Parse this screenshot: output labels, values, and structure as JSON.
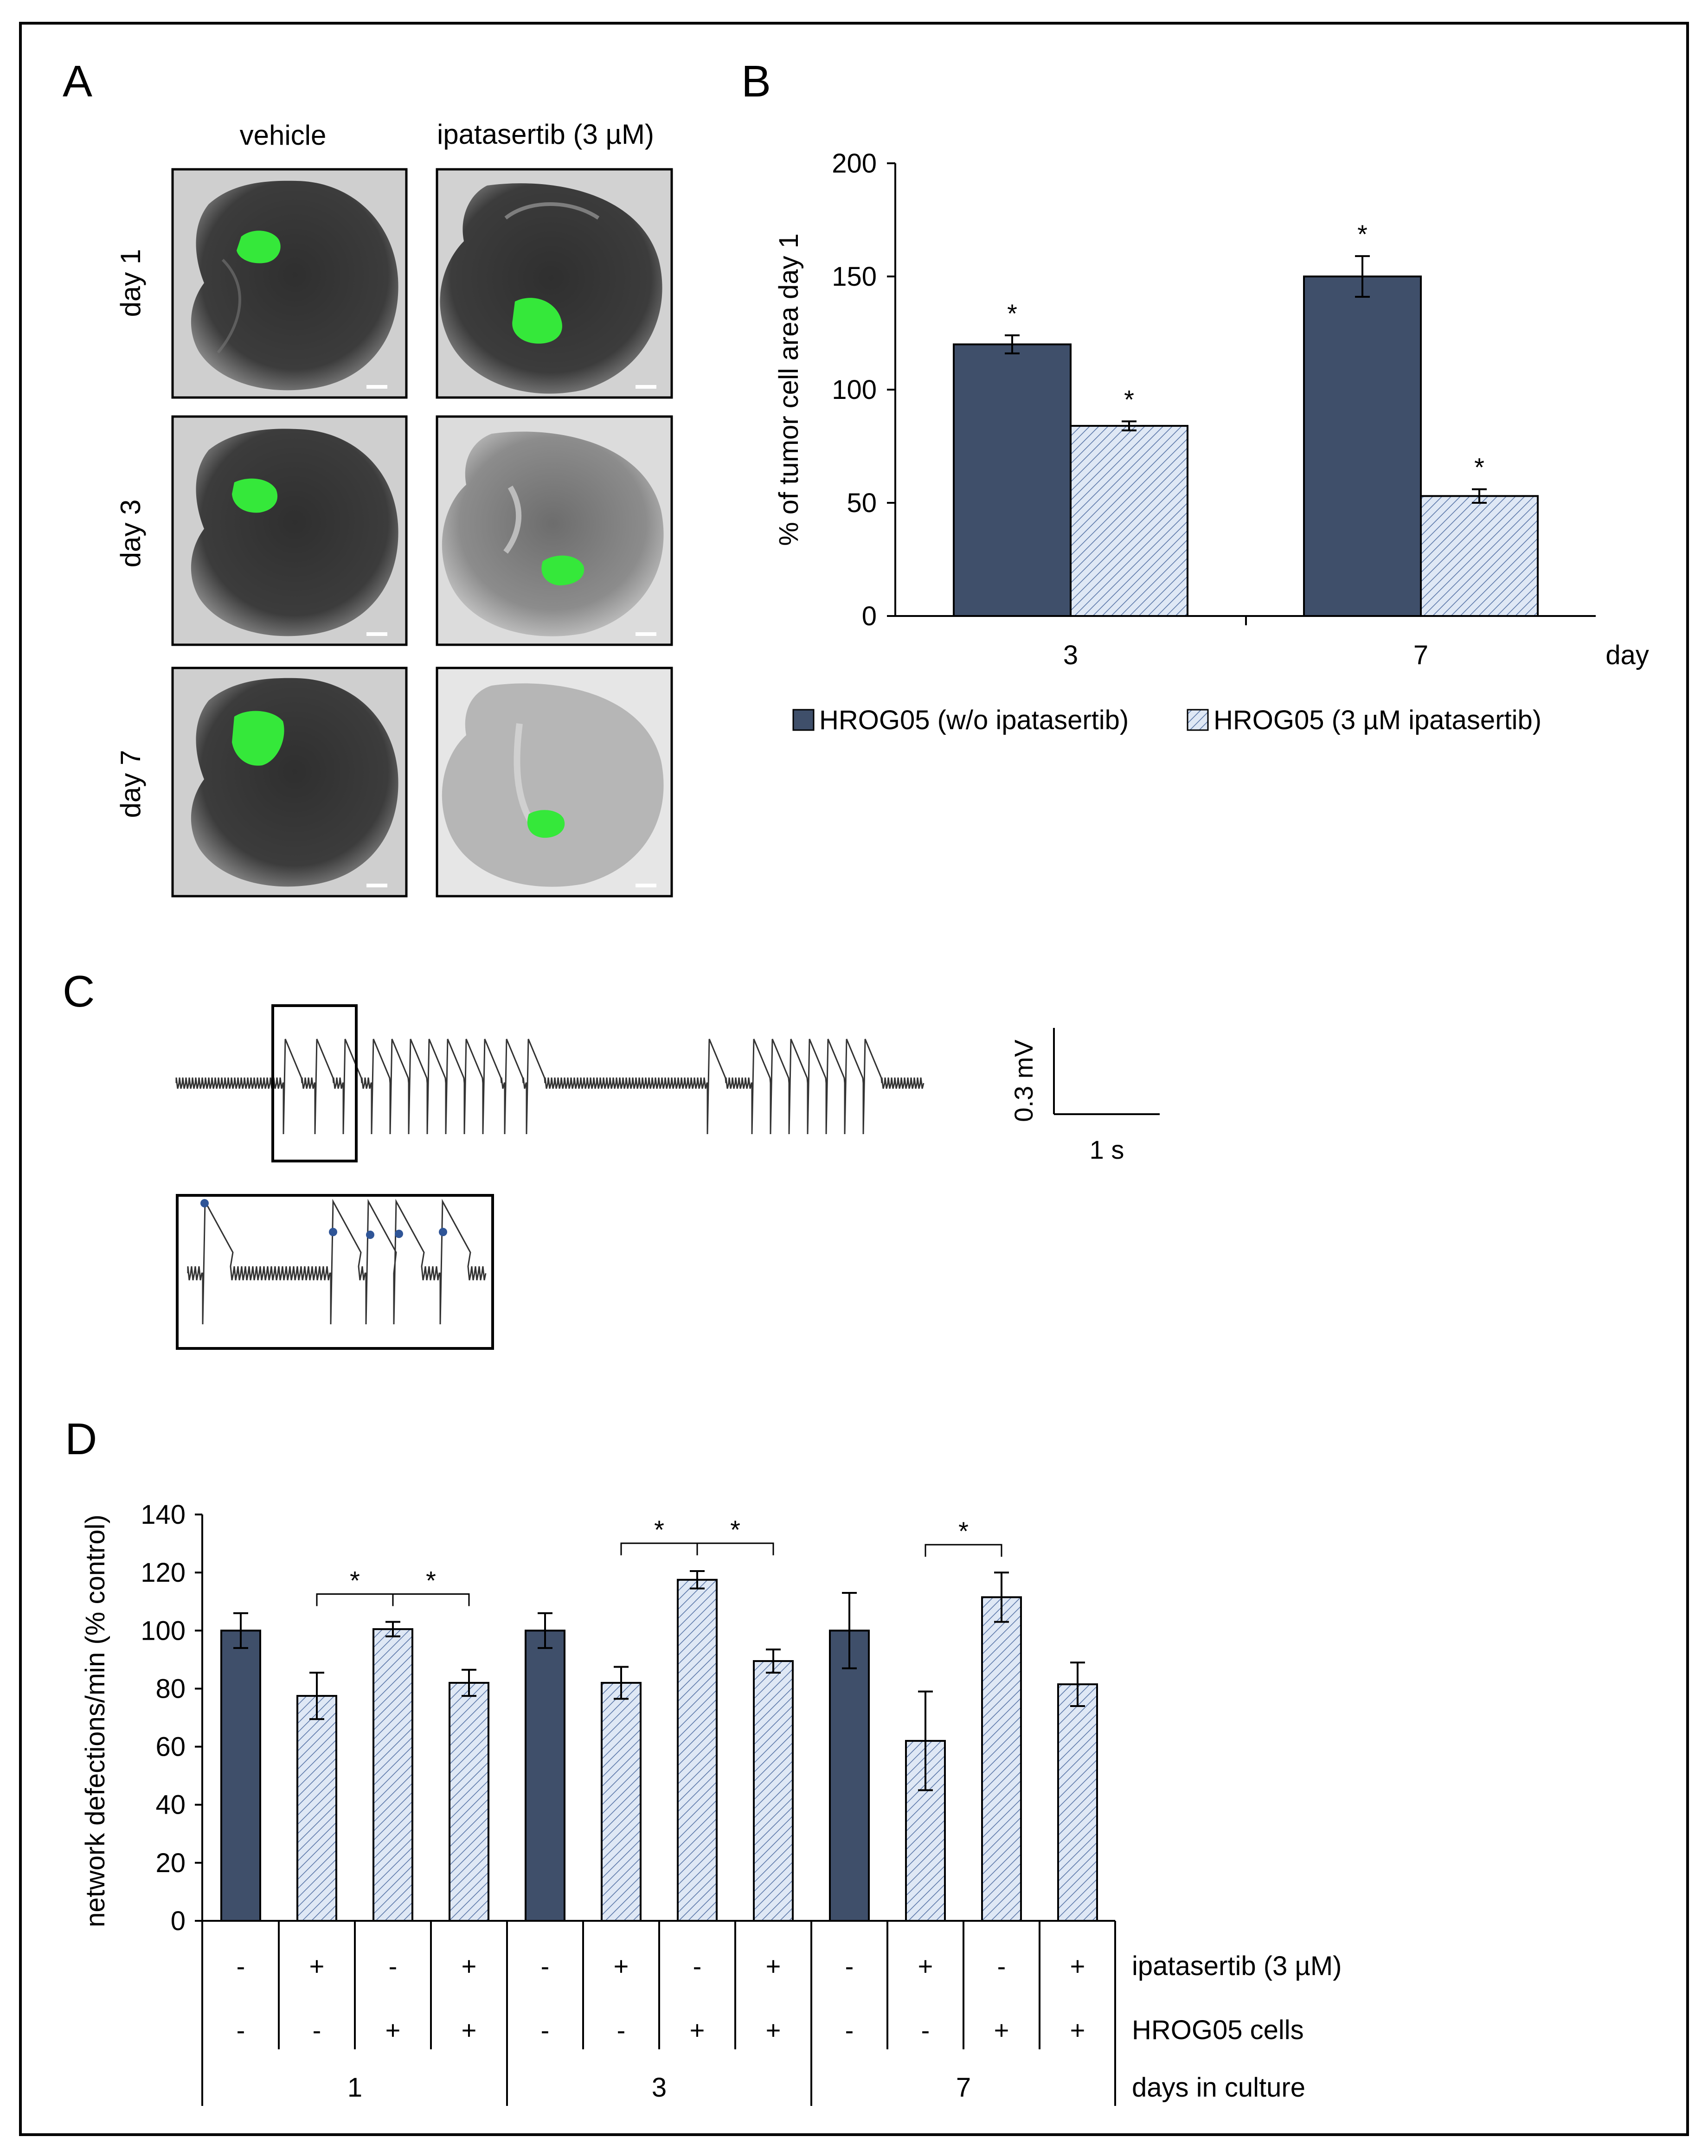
{
  "colors": {
    "dark_bar": "#3f4f6a",
    "hatch_bg": "#dfe8f5",
    "hatch_line": "#5b77a8",
    "fluorescence": "#35e83a",
    "trace": "#333333",
    "dot": "#2f5597"
  },
  "panel_a": {
    "letter": "A",
    "col_labels": [
      "vehicle",
      "ipatasertib (3 µM)"
    ],
    "row_labels": [
      "day 1",
      "day 3",
      "day 7"
    ]
  },
  "panel_c": {
    "letter": "C",
    "scale_voltage": "0.3 mV",
    "scale_time": "1 s"
  },
  "chart_data": [
    {
      "panel": "B",
      "type": "bar",
      "ylabel": "% of tumor cell area day 1",
      "xlabel": "day",
      "categories": [
        "3",
        "7"
      ],
      "ylim": [
        0,
        200
      ],
      "yticks": [
        0,
        50,
        100,
        150,
        200
      ],
      "series": [
        {
          "name": "HRO G05 (w/o ipatasertib)",
          "label": "HROG05 (w/o ipatasertib)",
          "style": "solid",
          "values": [
            120,
            150
          ],
          "errors": [
            4,
            9
          ],
          "sig": [
            "*",
            "*"
          ]
        },
        {
          "name": "HRO G05 (3 µM ipatasertib)",
          "label": "HROG05 (3 µM ipatasertib)",
          "style": "hatched",
          "values": [
            84,
            53
          ],
          "errors": [
            2,
            3
          ],
          "sig": [
            "*",
            "*"
          ]
        }
      ],
      "legend_position": "bottom"
    },
    {
      "panel": "D",
      "type": "bar",
      "ylabel": "network defections/min (% control)",
      "ylim": [
        0,
        140
      ],
      "yticks": [
        0,
        20,
        40,
        60,
        80,
        100,
        120,
        140
      ],
      "bars": [
        {
          "value": 100,
          "error": 6,
          "style": "solid",
          "ipatasertib": "-",
          "cells": "-"
        },
        {
          "value": 77.5,
          "error": 8,
          "style": "hatched",
          "ipatasertib": "+",
          "cells": "-"
        },
        {
          "value": 100.5,
          "error": 2.5,
          "style": "hatched",
          "ipatasertib": "-",
          "cells": "+"
        },
        {
          "value": 82,
          "error": 4.5,
          "style": "hatched",
          "ipatasertib": "+",
          "cells": "+"
        },
        {
          "value": 100,
          "error": 6,
          "style": "solid",
          "ipatasertib": "-",
          "cells": "-"
        },
        {
          "value": 82,
          "error": 5.5,
          "style": "hatched",
          "ipatasertib": "+",
          "cells": "-"
        },
        {
          "value": 117.5,
          "error": 3,
          "style": "hatched",
          "ipatasertib": "-",
          "cells": "+"
        },
        {
          "value": 89.5,
          "error": 4,
          "style": "hatched",
          "ipatasertib": "+",
          "cells": "+"
        },
        {
          "value": 100,
          "error": 13,
          "style": "solid",
          "ipatasertib": "-",
          "cells": "-"
        },
        {
          "value": 62,
          "error": 17,
          "style": "hatched",
          "ipatasertib": "+",
          "cells": "-"
        },
        {
          "value": 111.5,
          "error": 8.5,
          "style": "hatched",
          "ipatasertib": "-",
          "cells": "+"
        },
        {
          "value": 81.5,
          "error": 7.5,
          "style": "hatched",
          "ipatasertib": "+",
          "cells": "+"
        }
      ],
      "row_labels": [
        "ipatasertib (3 µM)",
        "HROG05 cells",
        "days in culture"
      ],
      "groups": [
        "1",
        "3",
        "7"
      ],
      "significance": [
        {
          "from": 1,
          "to": 2,
          "label": "*"
        },
        {
          "from": 2,
          "to": 3,
          "label": "*"
        },
        {
          "from": 5,
          "to": 6,
          "label": "*"
        },
        {
          "from": 6,
          "to": 7,
          "label": "*"
        },
        {
          "from": 9,
          "to": 10,
          "label": "*"
        }
      ]
    }
  ]
}
